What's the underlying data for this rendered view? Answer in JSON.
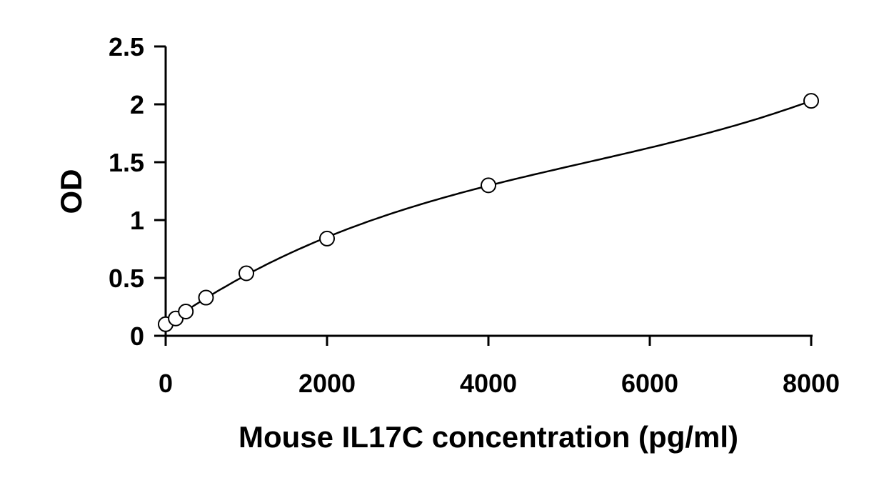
{
  "chart_data": {
    "type": "scatter",
    "title": "",
    "xlabel": "Mouse IL17C concentration (pg/ml)",
    "ylabel": "OD",
    "xlim": [
      0,
      8000
    ],
    "ylim": [
      0,
      2.5
    ],
    "x_ticks": [
      0,
      2000,
      4000,
      6000,
      8000
    ],
    "y_ticks": [
      0,
      0.5,
      1,
      1.5,
      2,
      2.5
    ],
    "x_tick_labels": [
      "0",
      "2000",
      "4000",
      "6000",
      "8000"
    ],
    "y_tick_labels": [
      "0",
      "0.5",
      "1",
      "1.5",
      "2",
      "2.5"
    ],
    "grid": false,
    "legend": "none",
    "series": [
      {
        "x": [
          0,
          125,
          250,
          500,
          1000,
          2000,
          4000,
          8000
        ],
        "y": [
          0.1,
          0.15,
          0.21,
          0.33,
          0.54,
          0.84,
          1.3,
          2.03
        ],
        "marker": "open-circle",
        "fit": "smooth-curve"
      }
    ],
    "colors": {
      "line": "#000000",
      "marker_fill": "#ffffff",
      "background": "#ffffff"
    }
  }
}
